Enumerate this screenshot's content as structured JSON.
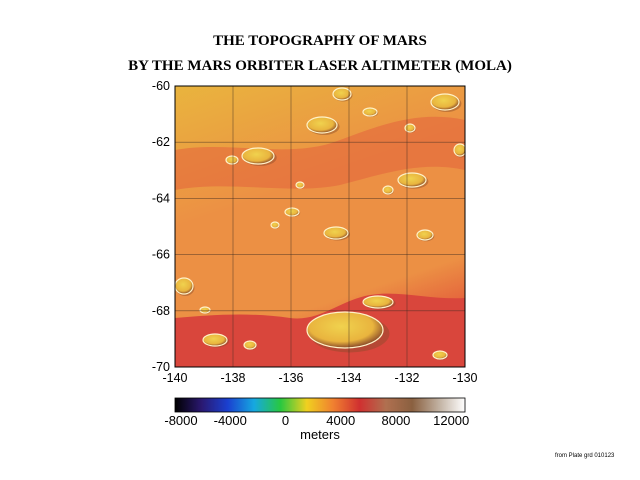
{
  "title": {
    "line1": "THE TOPOGRAPHY OF MARS",
    "line2": "BY THE MARS ORBITER LASER ALTIMETER (MOLA)"
  },
  "map": {
    "x_ticks": [
      "-140",
      "-138",
      "-136",
      "-134",
      "-132",
      "-130"
    ],
    "y_ticks": [
      "-60",
      "-62",
      "-64",
      "-66",
      "-68",
      "-70"
    ],
    "colors": {
      "high": "#e9b43e",
      "mid": "#ec9044",
      "low": "#e4623c",
      "basin": "#d9463c",
      "grid": "#3a2a20",
      "crater_floor": "#f0d24e",
      "crater_rim_light": "#fff2c8",
      "crater_shadow": "#8a4b2a"
    }
  },
  "colorbar": {
    "tick_labels": [
      "-8000",
      "-4000",
      "0",
      "4000",
      "8000",
      "12000"
    ],
    "unit_label": "meters",
    "colors": [
      "#000000",
      "#2a1870",
      "#1a40d0",
      "#16a8e0",
      "#28c840",
      "#f0d020",
      "#f08030",
      "#d03030",
      "#b07050",
      "#8a6040",
      "#c0b0a0",
      "#ffffff"
    ]
  },
  "credit": "from Plate grd 010123"
}
